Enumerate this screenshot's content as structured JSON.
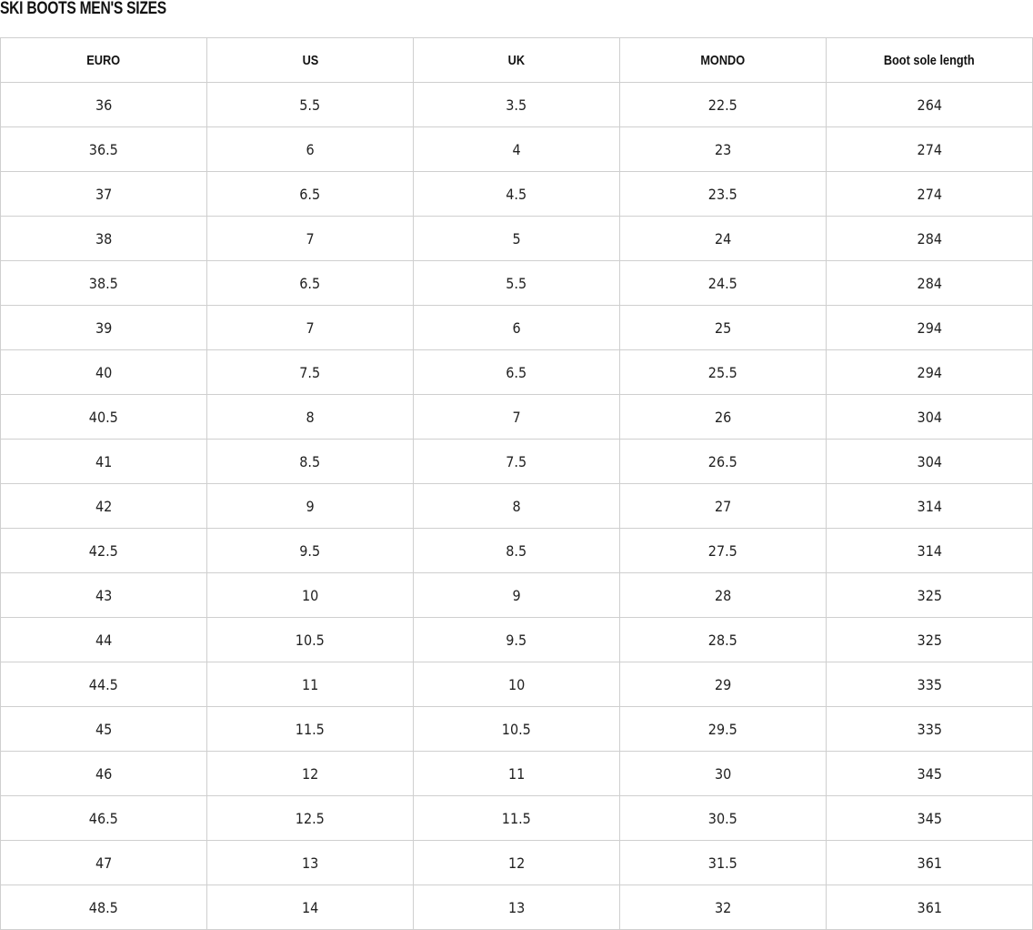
{
  "title": "SKI BOOTS MEN'S SIZES",
  "table": {
    "headers": [
      "EURO",
      "US",
      "UK",
      "MONDO",
      "Boot sole length"
    ],
    "rows": [
      [
        "36",
        "5.5",
        "3.5",
        "22.5",
        "264"
      ],
      [
        "36.5",
        "6",
        "4",
        "23",
        "274"
      ],
      [
        "37",
        "6.5",
        "4.5",
        "23.5",
        "274"
      ],
      [
        "38",
        "7",
        "5",
        "24",
        "284"
      ],
      [
        "38.5",
        "6.5",
        "5.5",
        "24.5",
        "284"
      ],
      [
        "39",
        "7",
        "6",
        "25",
        "294"
      ],
      [
        "40",
        "7.5",
        "6.5",
        "25.5",
        "294"
      ],
      [
        "40.5",
        "8",
        "7",
        "26",
        "304"
      ],
      [
        "41",
        "8.5",
        "7.5",
        "26.5",
        "304"
      ],
      [
        "42",
        "9",
        "8",
        "27",
        "314"
      ],
      [
        "42.5",
        "9.5",
        "8.5",
        "27.5",
        "314"
      ],
      [
        "43",
        "10",
        "9",
        "28",
        "325"
      ],
      [
        "44",
        "10.5",
        "9.5",
        "28.5",
        "325"
      ],
      [
        "44.5",
        "11",
        "10",
        "29",
        "335"
      ],
      [
        "45",
        "11.5",
        "10.5",
        "29.5",
        "335"
      ],
      [
        "46",
        "12",
        "11",
        "30",
        "345"
      ],
      [
        "46.5",
        "12.5",
        "11.5",
        "30.5",
        "345"
      ],
      [
        "47",
        "13",
        "12",
        "31.5",
        "361"
      ],
      [
        "48.5",
        "14",
        "13",
        "32",
        "361"
      ]
    ]
  }
}
